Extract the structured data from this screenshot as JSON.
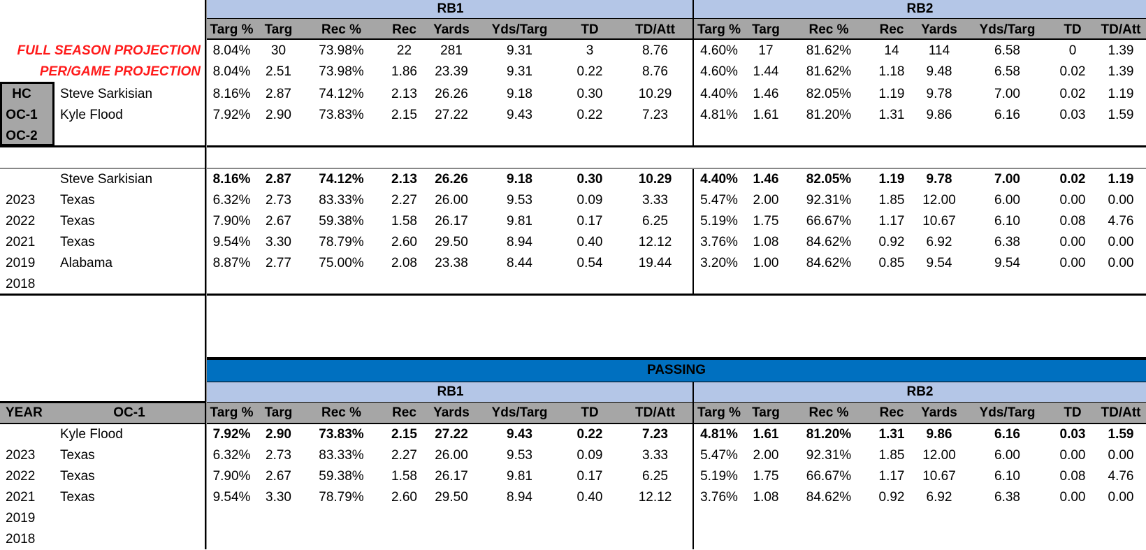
{
  "colors": {
    "header_fill": "#b4c6e7",
    "subheader_fill": "#a6a6a6",
    "passing_fill": "#0070c0",
    "projection_text": "#ff1a1a"
  },
  "top": {
    "group_labels": [
      "RB1",
      "RB2"
    ],
    "columns": [
      "Targ %",
      "Targ",
      "Rec %",
      "Rec",
      "Yards",
      "Yds/Targ",
      "TD",
      "TD/Att"
    ],
    "projections": [
      {
        "label": "FULL SEASON PROJECTION",
        "rb1": [
          "8.04%",
          "30",
          "73.98%",
          "22",
          "281",
          "9.31",
          "3",
          "8.76"
        ],
        "rb2": [
          "4.60%",
          "17",
          "81.62%",
          "14",
          "114",
          "6.58",
          "0",
          "1.39"
        ]
      },
      {
        "label": "PER/GAME PROJECTION",
        "rb1": [
          "8.04%",
          "2.51",
          "73.98%",
          "1.86",
          "23.39",
          "9.31",
          "0.22",
          "8.76"
        ],
        "rb2": [
          "4.60%",
          "1.44",
          "81.62%",
          "1.18",
          "9.48",
          "6.58",
          "0.02",
          "1.39"
        ]
      }
    ],
    "coaches": [
      {
        "role": "HC",
        "name": "Steve Sarkisian",
        "rb1": [
          "8.16%",
          "2.87",
          "74.12%",
          "2.13",
          "26.26",
          "9.18",
          "0.30",
          "10.29"
        ],
        "rb2": [
          "4.40%",
          "1.46",
          "82.05%",
          "1.19",
          "9.78",
          "7.00",
          "0.02",
          "1.19"
        ]
      },
      {
        "role": "OC-1",
        "name": "Kyle Flood",
        "rb1": [
          "7.92%",
          "2.90",
          "73.83%",
          "2.15",
          "27.22",
          "9.43",
          "0.22",
          "7.23"
        ],
        "rb2": [
          "4.81%",
          "1.61",
          "81.20%",
          "1.31",
          "9.86",
          "6.16",
          "0.03",
          "1.59"
        ]
      },
      {
        "role": "OC-2",
        "name": "",
        "rb1": [],
        "rb2": []
      }
    ]
  },
  "hc_history": {
    "summary": {
      "name": "Steve Sarkisian",
      "rb1": [
        "8.16%",
        "2.87",
        "74.12%",
        "2.13",
        "26.26",
        "9.18",
        "0.30",
        "10.29"
      ],
      "rb2": [
        "4.40%",
        "1.46",
        "82.05%",
        "1.19",
        "9.78",
        "7.00",
        "0.02",
        "1.19"
      ]
    },
    "rows": [
      {
        "year": "2023",
        "team": "Texas",
        "rb1": [
          "6.32%",
          "2.73",
          "83.33%",
          "2.27",
          "26.00",
          "9.53",
          "0.09",
          "3.33"
        ],
        "rb2": [
          "5.47%",
          "2.00",
          "92.31%",
          "1.85",
          "12.00",
          "6.00",
          "0.00",
          "0.00"
        ]
      },
      {
        "year": "2022",
        "team": "Texas",
        "rb1": [
          "7.90%",
          "2.67",
          "59.38%",
          "1.58",
          "26.17",
          "9.81",
          "0.17",
          "6.25"
        ],
        "rb2": [
          "5.19%",
          "1.75",
          "66.67%",
          "1.17",
          "10.67",
          "6.10",
          "0.08",
          "4.76"
        ]
      },
      {
        "year": "2021",
        "team": "Texas",
        "rb1": [
          "9.54%",
          "3.30",
          "78.79%",
          "2.60",
          "29.50",
          "8.94",
          "0.40",
          "12.12"
        ],
        "rb2": [
          "3.76%",
          "1.08",
          "84.62%",
          "0.92",
          "6.92",
          "6.38",
          "0.00",
          "0.00"
        ]
      },
      {
        "year": "2019",
        "team": "Alabama",
        "rb1": [
          "8.87%",
          "2.77",
          "75.00%",
          "2.08",
          "23.38",
          "8.44",
          "0.54",
          "19.44"
        ],
        "rb2": [
          "3.20%",
          "1.00",
          "84.62%",
          "0.85",
          "9.54",
          "9.54",
          "0.00",
          "0.00"
        ]
      },
      {
        "year": "2018",
        "team": "",
        "rb1": [],
        "rb2": []
      }
    ]
  },
  "oc_history": {
    "section_title": "PASSING",
    "group_labels": [
      "RB1",
      "RB2"
    ],
    "year_header": "YEAR",
    "role_header": "OC-1",
    "columns": [
      "Targ %",
      "Targ",
      "Rec %",
      "Rec",
      "Yards",
      "Yds/Targ",
      "TD",
      "TD/Att"
    ],
    "summary": {
      "name": "Kyle Flood",
      "rb1": [
        "7.92%",
        "2.90",
        "73.83%",
        "2.15",
        "27.22",
        "9.43",
        "0.22",
        "7.23"
      ],
      "rb2": [
        "4.81%",
        "1.61",
        "81.20%",
        "1.31",
        "9.86",
        "6.16",
        "0.03",
        "1.59"
      ]
    },
    "rows": [
      {
        "year": "2023",
        "team": "Texas",
        "rb1": [
          "6.32%",
          "2.73",
          "83.33%",
          "2.27",
          "26.00",
          "9.53",
          "0.09",
          "3.33"
        ],
        "rb2": [
          "5.47%",
          "2.00",
          "92.31%",
          "1.85",
          "12.00",
          "6.00",
          "0.00",
          "0.00"
        ]
      },
      {
        "year": "2022",
        "team": "Texas",
        "rb1": [
          "7.90%",
          "2.67",
          "59.38%",
          "1.58",
          "26.17",
          "9.81",
          "0.17",
          "6.25"
        ],
        "rb2": [
          "5.19%",
          "1.75",
          "66.67%",
          "1.17",
          "10.67",
          "6.10",
          "0.08",
          "4.76"
        ]
      },
      {
        "year": "2021",
        "team": "Texas",
        "rb1": [
          "9.54%",
          "3.30",
          "78.79%",
          "2.60",
          "29.50",
          "8.94",
          "0.40",
          "12.12"
        ],
        "rb2": [
          "3.76%",
          "1.08",
          "84.62%",
          "0.92",
          "6.92",
          "6.38",
          "0.00",
          "0.00"
        ]
      },
      {
        "year": "2019",
        "team": "",
        "rb1": [],
        "rb2": []
      },
      {
        "year": "2018",
        "team": "",
        "rb1": [],
        "rb2": []
      }
    ]
  }
}
